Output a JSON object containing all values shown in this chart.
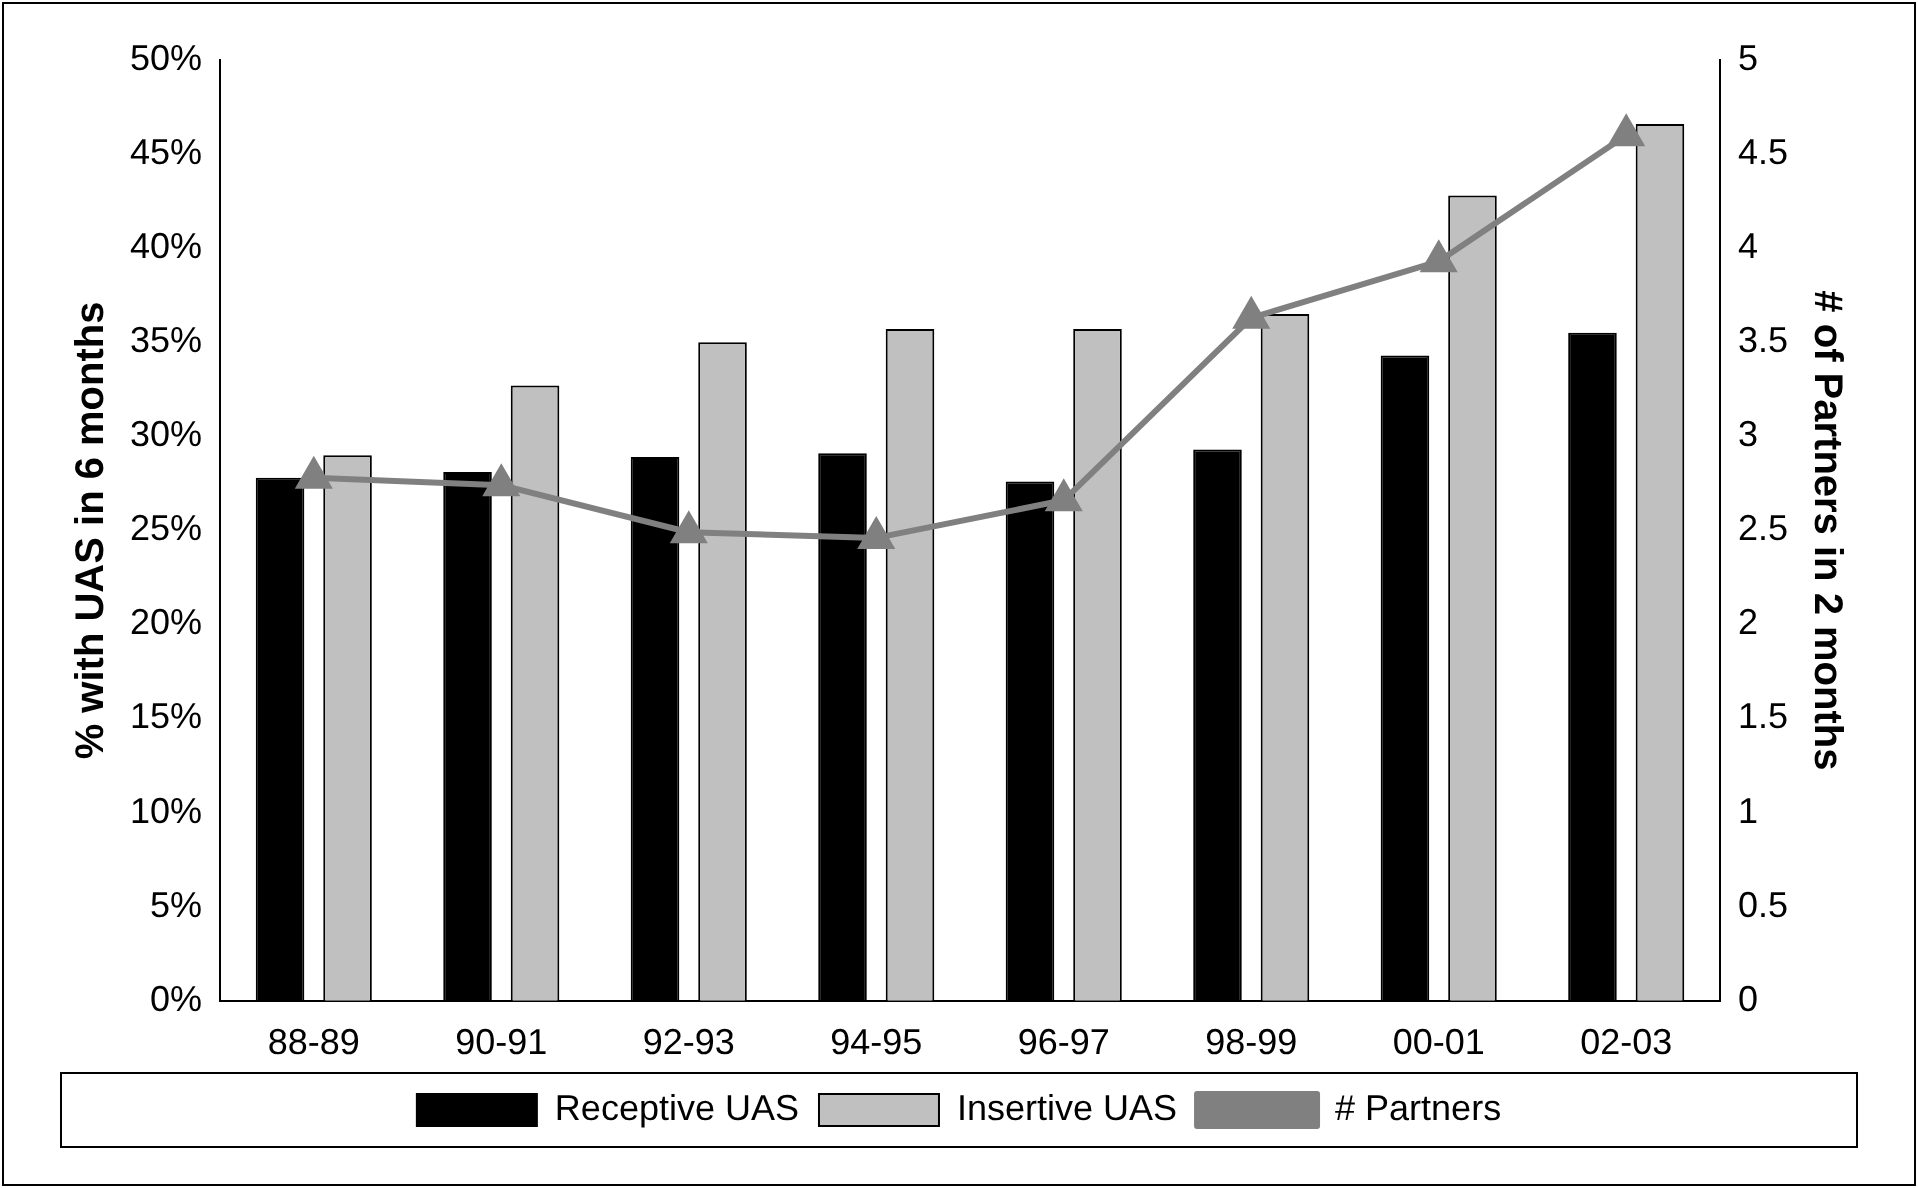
{
  "chart_data": {
    "type": "bar",
    "ylabel": "% with UAS in 6 months",
    "y2label": "# of Partners in 2 months",
    "categories": [
      "88-89",
      "90-91",
      "92-93",
      "94-95",
      "96-97",
      "98-99",
      "00-01",
      "02-03"
    ],
    "series": [
      {
        "name": "Receptive UAS",
        "color": "#000000",
        "values": [
          27.8,
          28.1,
          28.9,
          29.1,
          27.6,
          29.3,
          34.3,
          35.5
        ]
      },
      {
        "name": "Insertive UAS",
        "color": "#c0c0c0",
        "values": [
          29.0,
          32.7,
          35.0,
          35.7,
          35.7,
          36.5,
          42.8,
          46.6
        ]
      },
      {
        "name": "# Partners",
        "type": "line",
        "axis": "y2",
        "color": "#808080",
        "values": [
          2.78,
          2.74,
          2.49,
          2.46,
          2.66,
          3.63,
          3.93,
          4.6
        ]
      }
    ],
    "ylim": [
      0,
      50
    ],
    "yticks": [
      {
        "value": 0,
        "label": "0%"
      },
      {
        "value": 5,
        "label": "5%"
      },
      {
        "value": 10,
        "label": "10%"
      },
      {
        "value": 15,
        "label": "15%"
      },
      {
        "value": 20,
        "label": "20%"
      },
      {
        "value": 25,
        "label": "25%"
      },
      {
        "value": 30,
        "label": "30%"
      },
      {
        "value": 35,
        "label": "35%"
      },
      {
        "value": 40,
        "label": "40%"
      },
      {
        "value": 45,
        "label": "45%"
      },
      {
        "value": 50,
        "label": "50%"
      }
    ],
    "y2lim": [
      0,
      5
    ],
    "y2ticks": [
      0,
      0.5,
      1,
      1.5,
      2,
      2.5,
      3,
      3.5,
      4,
      4.5,
      5
    ],
    "marker": "triangle",
    "line_style": "solid",
    "grid": false,
    "legend": "bottom"
  }
}
